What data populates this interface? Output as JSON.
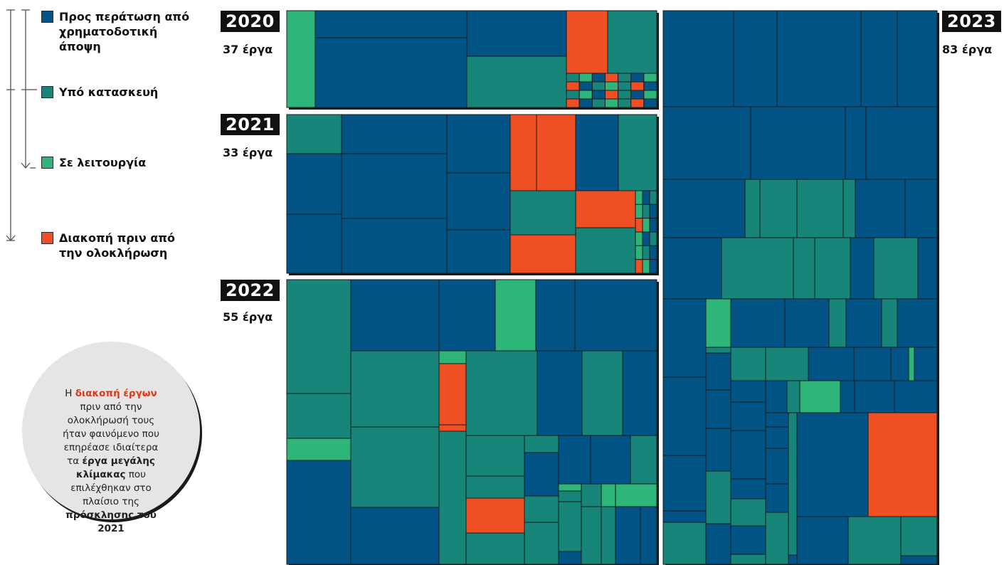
{
  "legend": [
    {
      "label": "Προς περάτωση από χρηματοδοτική άποψη",
      "color": "#035486"
    },
    {
      "label": "Υπό κατασκευή",
      "color": "#17857a"
    },
    {
      "label": "Σε λειτουργία",
      "color": "#2eb57a"
    },
    {
      "label": "Διακοπή πριν από την ολοκλήρωση",
      "color": "#f04e23"
    }
  ],
  "years": [
    {
      "year": "2020",
      "count_label": "37 έργα"
    },
    {
      "year": "2021",
      "count_label": "33 έργα"
    },
    {
      "year": "2022",
      "count_label": "55 έργα"
    },
    {
      "year": "2023",
      "count_label": "83 έργα"
    }
  ],
  "callout": {
    "p1": "Η ",
    "highlight": "διακοπή έργων",
    "p2": " πριν από την ολοκλήρωσή τους ήταν φαινόμενο που επηρέασε ιδιαίτερα τα ",
    "bold1": "έργα μεγάλης κλίμακας",
    "p3": " που επιλέχθηκαν στο πλαίσιο της ",
    "bold2": "πρόσκλησης του 2021"
  },
  "chart_data": {
    "type": "treemap",
    "statuses": [
      "Προς περάτωση από χρηματοδοτική άποψη",
      "Υπό κατασκευή",
      "Σε λειτουργία",
      "Διακοπή πριν από την ολοκλήρωση"
    ],
    "groups": [
      {
        "year": "2020",
        "projects": 37
      },
      {
        "year": "2021",
        "projects": 33
      },
      {
        "year": "2022",
        "projects": 55
      },
      {
        "year": "2023",
        "projects": 83
      }
    ]
  }
}
